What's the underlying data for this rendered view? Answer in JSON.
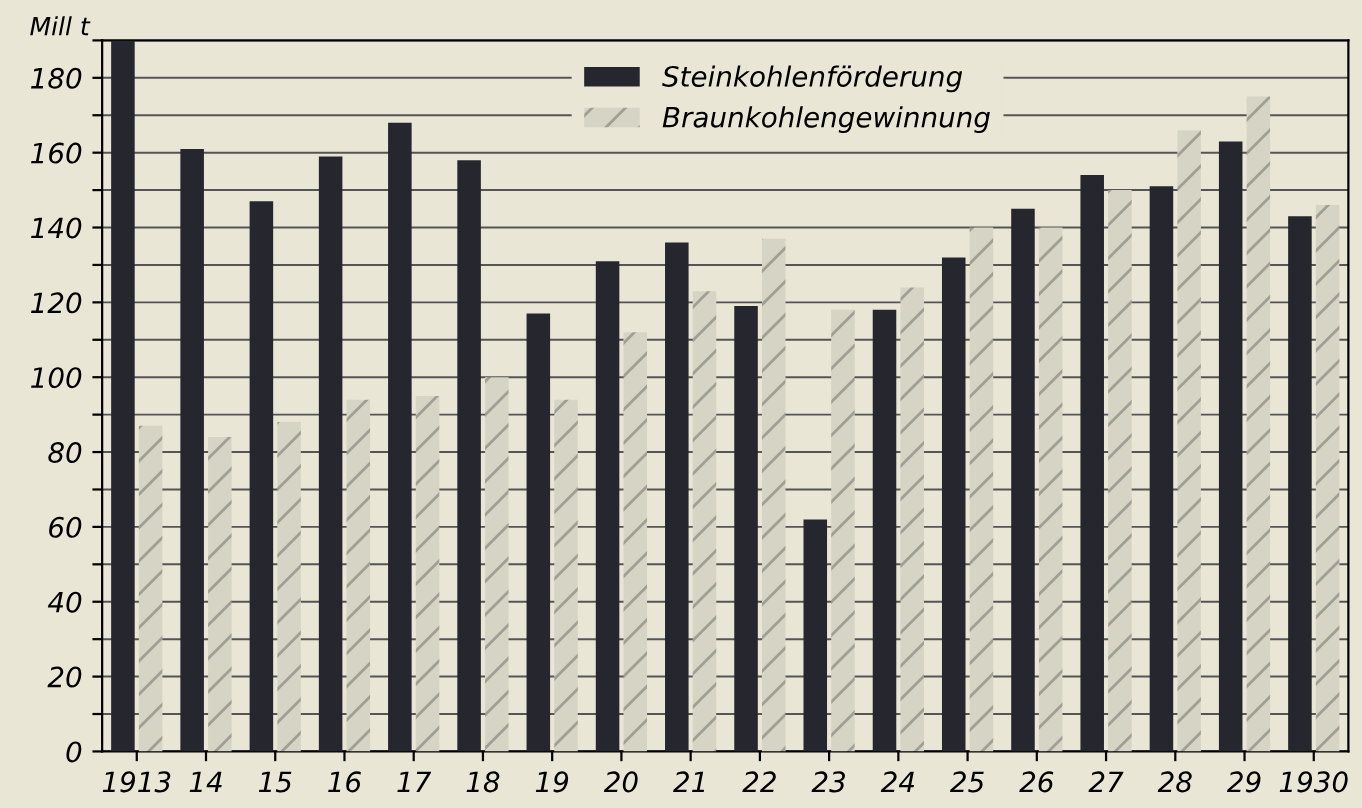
{
  "chart_data": {
    "type": "bar",
    "ylabel": "Mill t",
    "categories": [
      "1913",
      "14",
      "15",
      "16",
      "17",
      "18",
      "19",
      "20",
      "21",
      "22",
      "23",
      "24",
      "25",
      "26",
      "27",
      "28",
      "29",
      "1930"
    ],
    "series": [
      {
        "name": "Steinkohlenförderung",
        "color": "#26262e",
        "values": [
          190,
          161,
          147,
          159,
          168,
          158,
          117,
          131,
          136,
          119,
          62,
          118,
          132,
          145,
          154,
          151,
          163,
          143
        ]
      },
      {
        "name": "Braunkohlengewinnung",
        "color": "#d6d4c4",
        "values": [
          87,
          84,
          88,
          94,
          95,
          100,
          94,
          112,
          123,
          137,
          118,
          124,
          140,
          140,
          150,
          166,
          175,
          146
        ]
      }
    ],
    "ylim": [
      0,
      190
    ],
    "yticks": [
      0,
      {
        "value": 10,
        "label": null
      },
      20,
      {
        "value": 30,
        "label": null
      },
      40,
      {
        "value": 50,
        "label": null
      },
      60,
      {
        "value": 70,
        "label": null
      },
      80,
      {
        "value": 90,
        "label": null
      },
      100,
      {
        "value": 110,
        "label": null
      },
      120,
      {
        "value": 130,
        "label": null
      },
      140,
      {
        "value": 150,
        "label": null
      },
      160,
      {
        "value": 170,
        "label": null
      },
      180,
      {
        "value": 190,
        "label": null
      }
    ],
    "grid": "y",
    "legend": "top"
  }
}
